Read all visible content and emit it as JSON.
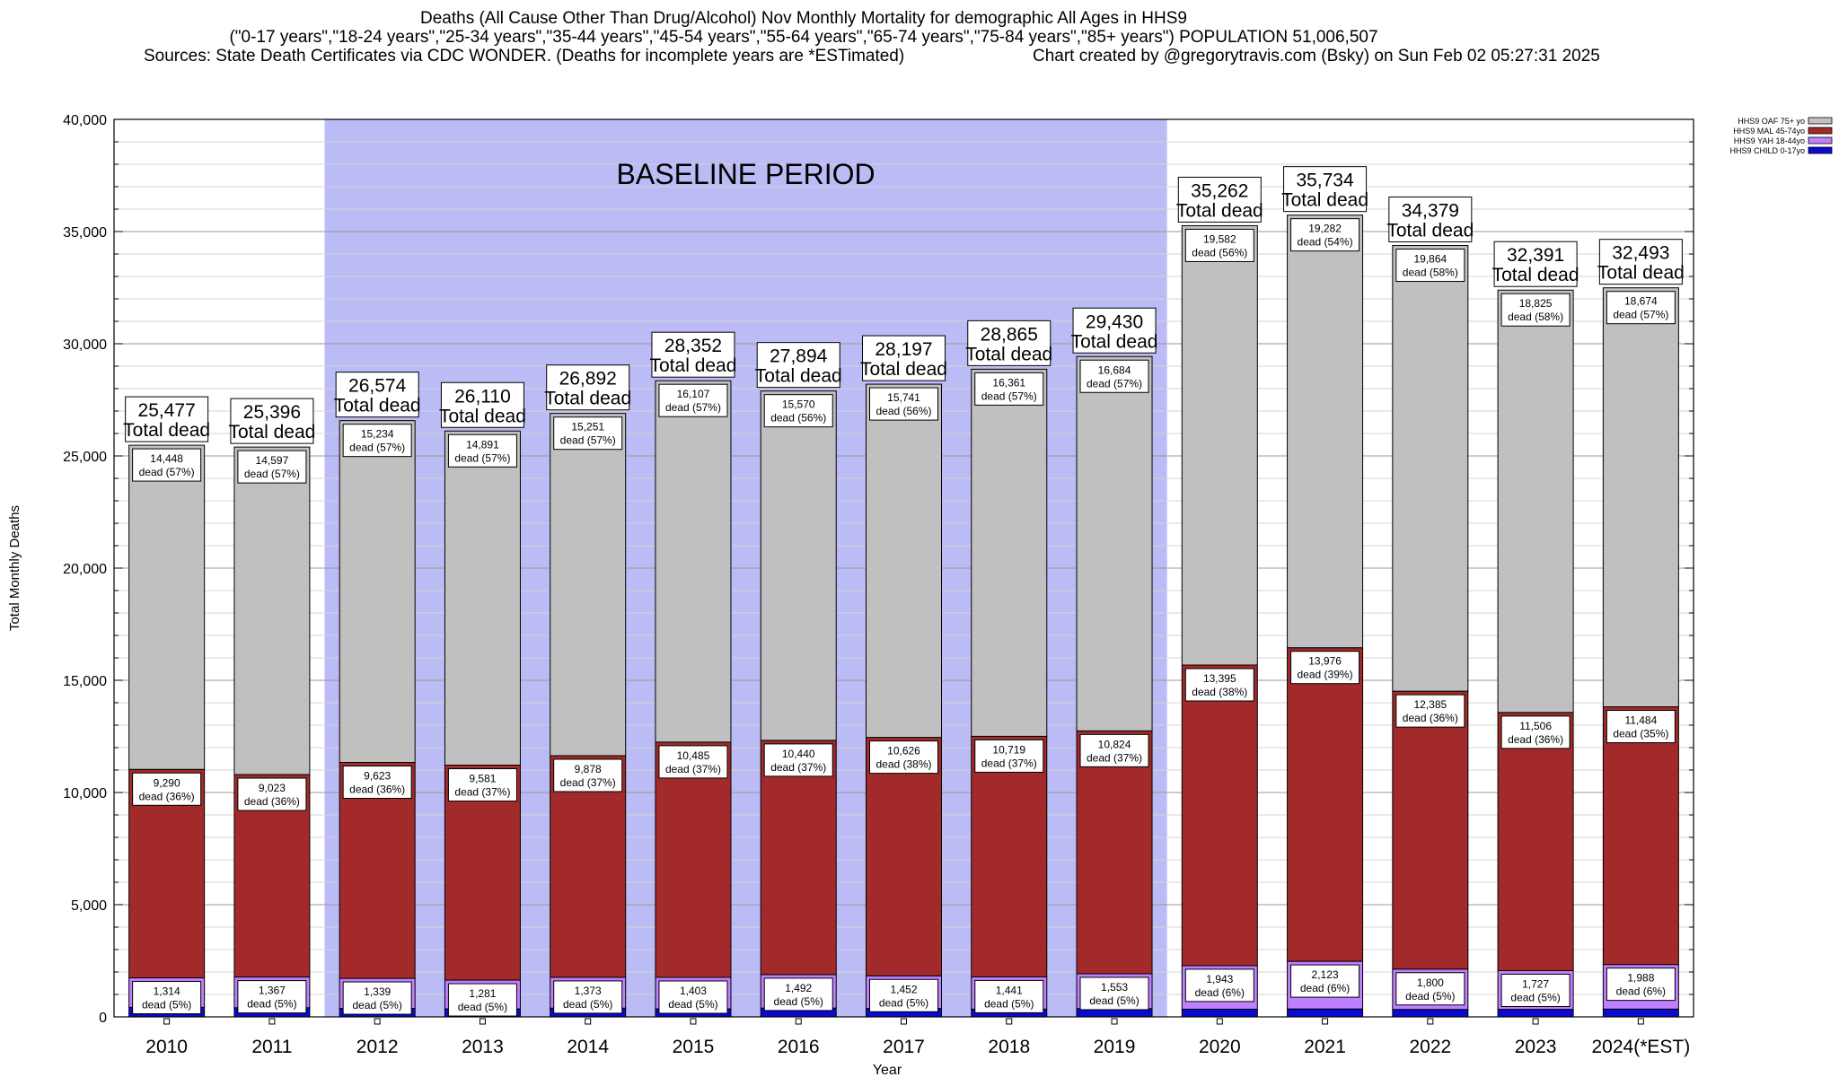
{
  "header": {
    "line1": "Deaths (All Cause Other Than Drug/Alcohol) Nov Monthly Mortality for demographic All Ages in HHS9",
    "line2": "(\"0-17 years\",\"18-24 years\",\"25-34 years\",\"35-44 years\",\"45-54 years\",\"55-64 years\",\"65-74 years\",\"75-84 years\",\"85+ years\") POPULATION 51,006,507",
    "sources": "Sources: State Death Certificates via CDC WONDER. (Deaths for incomplete years are *ESTimated)",
    "credit": "Chart created by @gregorytravis.com (Bsky) on Sun Feb 02 05:27:31 2025"
  },
  "colors": {
    "oaf": "#c0c0c0",
    "mal": "#a32a2a",
    "yah": "#bf80ff",
    "child": "#0a0ad0",
    "baseline": "#bbbbf5"
  },
  "chart_data": {
    "type": "bar",
    "stacked": true,
    "xlabel": "Year",
    "ylabel": "Total Monthly Deaths",
    "ylim": [
      0,
      40000
    ],
    "yticks": [
      0,
      5000,
      10000,
      15000,
      20000,
      25000,
      30000,
      35000,
      40000
    ],
    "ytick_labels": [
      "0",
      "5,000",
      "10,000",
      "15,000",
      "20,000",
      "25,000",
      "30,000",
      "35,000",
      "40,000"
    ],
    "grid": true,
    "baseline_label": "BASELINE PERIOD",
    "baseline_range": [
      "2012",
      "2019"
    ],
    "total_suffix": "Total dead",
    "dead_word": "dead",
    "legend_position": "top-right",
    "categories": [
      "2010",
      "2011",
      "2012",
      "2013",
      "2014",
      "2015",
      "2016",
      "2017",
      "2018",
      "2019",
      "2020",
      "2021",
      "2022",
      "2023",
      "2024(*EST)"
    ],
    "totals": [
      25477,
      25396,
      26574,
      26110,
      26892,
      28352,
      27894,
      28197,
      28865,
      29430,
      35262,
      35734,
      34379,
      32391,
      32493
    ],
    "total_labels": [
      "25,477",
      "25,396",
      "26,574",
      "26,110",
      "26,892",
      "28,352",
      "27,894",
      "28,197",
      "28,865",
      "29,430",
      "35,262",
      "35,734",
      "34,379",
      "32,391",
      "32,493"
    ],
    "series": [
      {
        "name": "HHS9 CHILD 0-17yo",
        "key": "child",
        "values": [
          425,
          409,
          378,
          357,
          390,
          357,
          392,
          378,
          344,
          369,
          342,
          353,
          330,
          333,
          347
        ]
      },
      {
        "name": "HHS9 YAH 18-44yo",
        "key": "yah",
        "values": [
          1314,
          1367,
          1339,
          1281,
          1373,
          1403,
          1492,
          1452,
          1441,
          1553,
          1943,
          2123,
          1800,
          1727,
          1988
        ],
        "labels": [
          "1,314",
          "1,367",
          "1,339",
          "1,281",
          "1,373",
          "1,403",
          "1,492",
          "1,452",
          "1,441",
          "1,553",
          "1,943",
          "2,123",
          "1,800",
          "1,727",
          "1,988"
        ],
        "pcts": [
          "(5%)",
          "(5%)",
          "(5%)",
          "(5%)",
          "(5%)",
          "(5%)",
          "(5%)",
          "(5%)",
          "(5%)",
          "(5%)",
          "(6%)",
          "(6%)",
          "(5%)",
          "(5%)",
          "(6%)"
        ]
      },
      {
        "name": "HHS9 MAL 45-74yo",
        "key": "mal",
        "values": [
          9290,
          9023,
          9623,
          9581,
          9878,
          10485,
          10440,
          10626,
          10719,
          10824,
          13395,
          13976,
          12385,
          11506,
          11484
        ],
        "labels": [
          "9,290",
          "9,023",
          "9,623",
          "9,581",
          "9,878",
          "10,485",
          "10,440",
          "10,626",
          "10,719",
          "10,824",
          "13,395",
          "13,976",
          "12,385",
          "11,506",
          "11,484"
        ],
        "pcts": [
          "(36%)",
          "(36%)",
          "(36%)",
          "(37%)",
          "(37%)",
          "(37%)",
          "(37%)",
          "(38%)",
          "(37%)",
          "(37%)",
          "(38%)",
          "(39%)",
          "(36%)",
          "(36%)",
          "(35%)"
        ]
      },
      {
        "name": "HHS9 OAF 75+ yo",
        "key": "oaf",
        "values": [
          14448,
          14597,
          15234,
          14891,
          15251,
          16107,
          15570,
          15741,
          16361,
          16684,
          19582,
          19282,
          19864,
          18825,
          18674
        ],
        "labels": [
          "14,448",
          "14,597",
          "15,234",
          "14,891",
          "15,251",
          "16,107",
          "15,570",
          "15,741",
          "16,361",
          "16,684",
          "19,582",
          "19,282",
          "19,864",
          "18,825",
          "18,674"
        ],
        "pcts": [
          "(57%)",
          "(57%)",
          "(57%)",
          "(57%)",
          "(57%)",
          "(57%)",
          "(56%)",
          "(56%)",
          "(57%)",
          "(57%)",
          "(56%)",
          "(54%)",
          "(58%)",
          "(58%)",
          "(57%)"
        ]
      }
    ],
    "legend": [
      {
        "name": "HHS9 OAF 75+ yo",
        "key": "oaf"
      },
      {
        "name": "HHS9 MAL 45-74yo",
        "key": "mal"
      },
      {
        "name": "HHS9 YAH 18-44yo",
        "key": "yah"
      },
      {
        "name": "HHS9 CHILD 0-17yo",
        "key": "child"
      }
    ]
  }
}
